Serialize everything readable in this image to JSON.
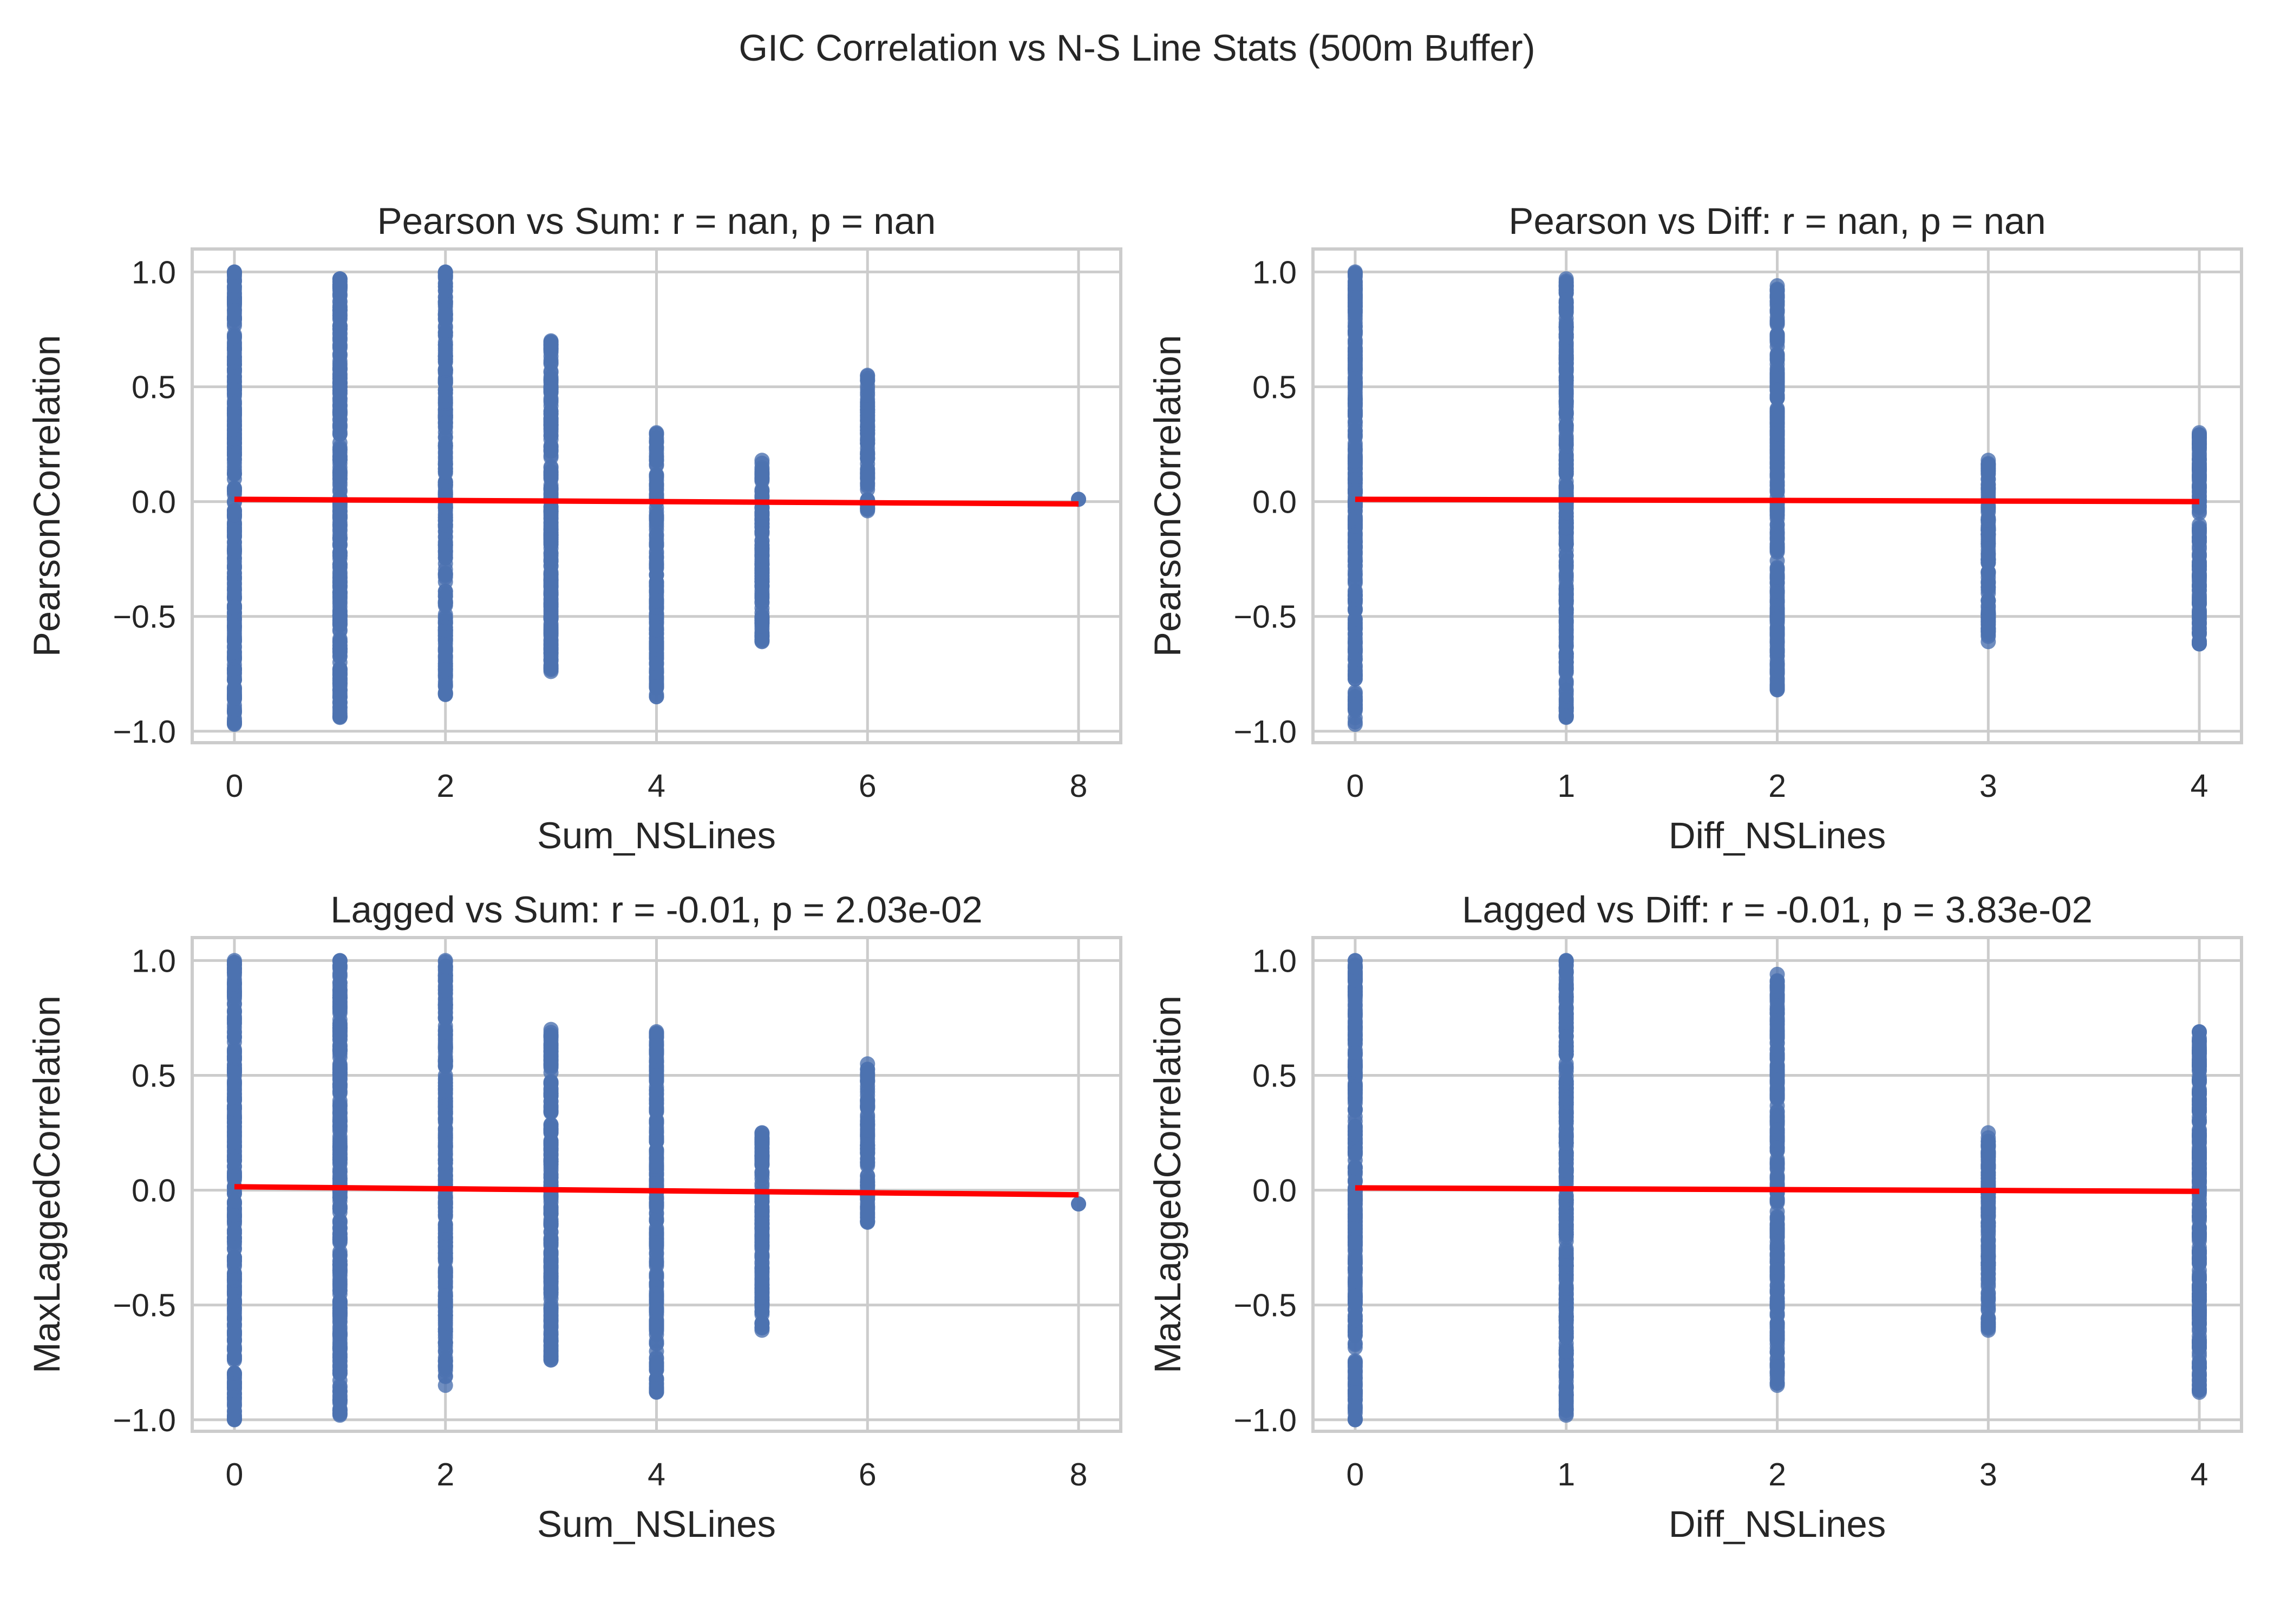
{
  "suptitle": "GIC Correlation vs N-S Line Stats (500m Buffer)",
  "colors": {
    "points": "#4c72b0",
    "fit_line": "#ff0000",
    "grid": "#cccccc"
  },
  "chart_data": [
    {
      "type": "scatter",
      "title": "Pearson vs Sum: r = nan, p = nan",
      "xlabel": "Sum_NSLines",
      "ylabel": "PearsonCorrelation",
      "xlim": [
        -0.4,
        8.4
      ],
      "ylim": [
        -1.05,
        1.1
      ],
      "xticks": [
        0,
        2,
        4,
        6,
        8
      ],
      "yticks": [
        -1.0,
        -0.5,
        0.0,
        0.5,
        1.0
      ],
      "grid": true,
      "columns": [
        {
          "x": 0,
          "ymin": -0.97,
          "ymax": 1.0
        },
        {
          "x": 1,
          "ymin": -0.94,
          "ymax": 0.97
        },
        {
          "x": 2,
          "ymin": -0.84,
          "ymax": 1.0
        },
        {
          "x": 3,
          "ymin": -0.74,
          "ymax": 0.7
        },
        {
          "x": 4,
          "ymin": -0.85,
          "ymax": 0.3
        },
        {
          "x": 5,
          "ymin": -0.61,
          "ymax": 0.18
        },
        {
          "x": 6,
          "ymin": -0.04,
          "ymax": 0.55
        },
        {
          "x": 8,
          "ymin": 0.01,
          "ymax": 0.01
        }
      ],
      "fit": {
        "x": [
          0,
          8
        ],
        "y": [
          0.01,
          -0.01
        ]
      }
    },
    {
      "type": "scatter",
      "title": "Pearson vs Diff: r = nan, p = nan",
      "xlabel": "Diff_NSLines",
      "ylabel": "PearsonCorrelation",
      "xlim": [
        -0.2,
        4.2
      ],
      "ylim": [
        -1.05,
        1.1
      ],
      "xticks": [
        0,
        1,
        2,
        3,
        4
      ],
      "yticks": [
        -1.0,
        -0.5,
        0.0,
        0.5,
        1.0
      ],
      "grid": true,
      "columns": [
        {
          "x": 0,
          "ymin": -0.97,
          "ymax": 1.0
        },
        {
          "x": 1,
          "ymin": -0.94,
          "ymax": 0.97
        },
        {
          "x": 2,
          "ymin": -0.82,
          "ymax": 0.94
        },
        {
          "x": 3,
          "ymin": -0.61,
          "ymax": 0.18
        },
        {
          "x": 4,
          "ymin": -0.62,
          "ymax": 0.3
        }
      ],
      "fit": {
        "x": [
          0,
          4
        ],
        "y": [
          0.01,
          -0.0
        ]
      }
    },
    {
      "type": "scatter",
      "title": "Lagged vs Sum: r = -0.01, p = 2.03e-02",
      "xlabel": "Sum_NSLines",
      "ylabel": "MaxLaggedCorrelation",
      "xlim": [
        -0.4,
        8.4
      ],
      "ylim": [
        -1.05,
        1.1
      ],
      "xticks": [
        0,
        2,
        4,
        6,
        8
      ],
      "yticks": [
        -1.0,
        -0.5,
        0.0,
        0.5,
        1.0
      ],
      "grid": true,
      "columns": [
        {
          "x": 0,
          "ymin": -1.0,
          "ymax": 1.0
        },
        {
          "x": 1,
          "ymin": -0.98,
          "ymax": 1.0
        },
        {
          "x": 2,
          "ymin": -0.85,
          "ymax": 1.0
        },
        {
          "x": 3,
          "ymin": -0.74,
          "ymax": 0.7
        },
        {
          "x": 4,
          "ymin": -0.88,
          "ymax": 0.69
        },
        {
          "x": 5,
          "ymin": -0.61,
          "ymax": 0.25
        },
        {
          "x": 6,
          "ymin": -0.14,
          "ymax": 0.55
        },
        {
          "x": 8,
          "ymin": -0.06,
          "ymax": -0.06
        }
      ],
      "fit": {
        "x": [
          0,
          8
        ],
        "y": [
          0.015,
          -0.02
        ]
      }
    },
    {
      "type": "scatter",
      "title": "Lagged vs Diff: r = -0.01, p = 3.83e-02",
      "xlabel": "Diff_NSLines",
      "ylabel": "MaxLaggedCorrelation",
      "xlim": [
        -0.2,
        4.2
      ],
      "ylim": [
        -1.05,
        1.1
      ],
      "xticks": [
        0,
        1,
        2,
        3,
        4
      ],
      "yticks": [
        -1.0,
        -0.5,
        0.0,
        0.5,
        1.0
      ],
      "grid": true,
      "columns": [
        {
          "x": 0,
          "ymin": -1.0,
          "ymax": 1.0
        },
        {
          "x": 1,
          "ymin": -0.98,
          "ymax": 1.0
        },
        {
          "x": 2,
          "ymin": -0.85,
          "ymax": 0.94
        },
        {
          "x": 3,
          "ymin": -0.61,
          "ymax": 0.25
        },
        {
          "x": 4,
          "ymin": -0.88,
          "ymax": 0.69
        }
      ],
      "fit": {
        "x": [
          0,
          4
        ],
        "y": [
          0.01,
          -0.005
        ]
      }
    }
  ]
}
